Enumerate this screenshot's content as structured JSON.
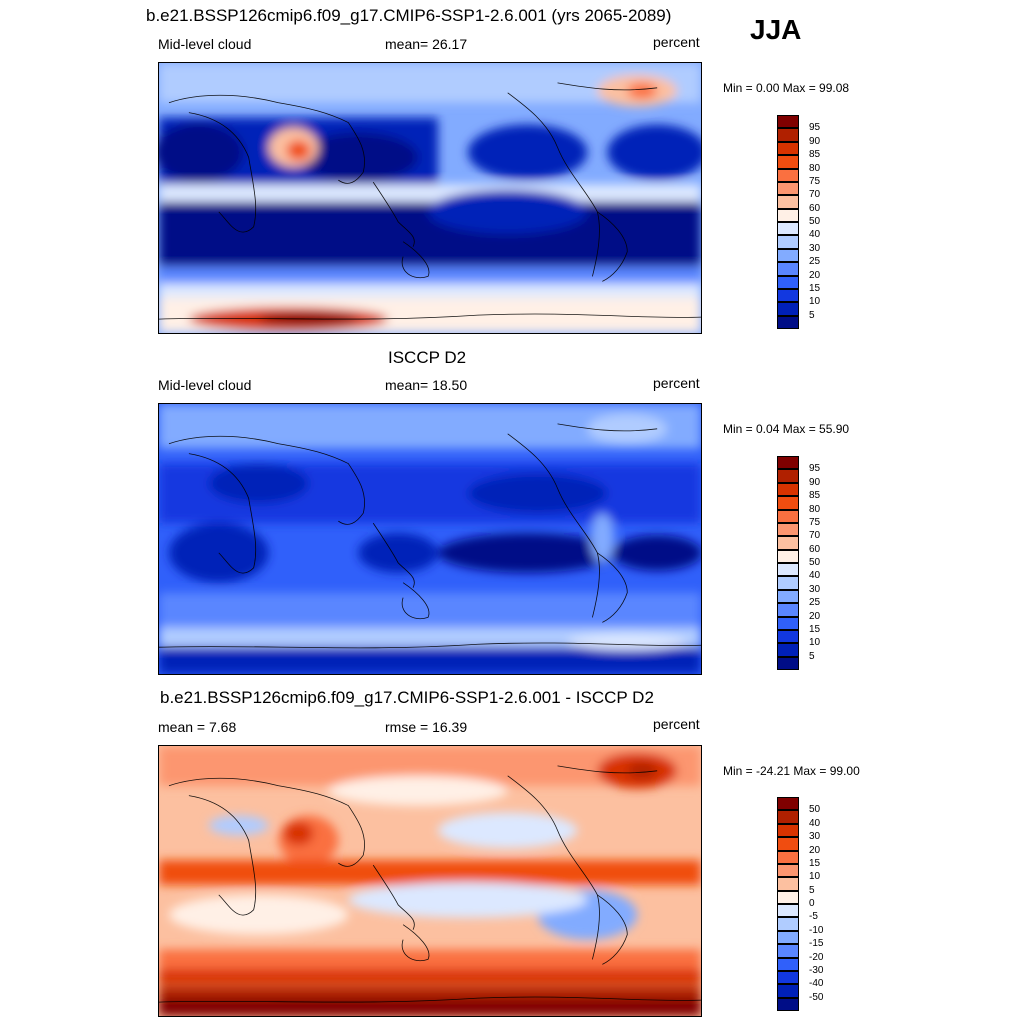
{
  "season": "JJA",
  "panels": [
    {
      "title": "b.e21.BSSP126cmip6.f09_g17.CMIP6-SSP1-2.6.001 (yrs 2065-2089)",
      "left_label": "Mid-level cloud",
      "center_label": "mean=  26.17",
      "right_label": "percent",
      "minmax": "Min =   0.00 Max =  99.08",
      "colorbar": {
        "colors": [
          "#7f0000",
          "#b02000",
          "#d83300",
          "#f04d10",
          "#fa7040",
          "#fc9670",
          "#fcc0a0",
          "#fff0e6",
          "#dce8ff",
          "#b0ccff",
          "#82abff",
          "#5a86ff",
          "#3060fa",
          "#1238e0",
          "#0020b8",
          "#000d87"
        ],
        "labels": [
          "95",
          "90",
          "85",
          "80",
          "75",
          "70",
          "60",
          "50",
          "40",
          "30",
          "25",
          "20",
          "15",
          "10",
          "5"
        ]
      }
    },
    {
      "title": "ISCCP D2",
      "left_label": "Mid-level cloud",
      "center_label": "mean=  18.50",
      "right_label": "percent",
      "minmax": "Min =   0.04 Max =  55.90",
      "colorbar": {
        "colors": [
          "#7f0000",
          "#b02000",
          "#d83300",
          "#f04d10",
          "#fa7040",
          "#fc9670",
          "#fcc0a0",
          "#fff0e6",
          "#dce8ff",
          "#b0ccff",
          "#82abff",
          "#5a86ff",
          "#3060fa",
          "#1238e0",
          "#0020b8",
          "#000d87"
        ],
        "labels": [
          "95",
          "90",
          "85",
          "80",
          "75",
          "70",
          "60",
          "50",
          "40",
          "30",
          "25",
          "20",
          "15",
          "10",
          "5"
        ]
      }
    },
    {
      "title": "b.e21.BSSP126cmip6.f09_g17.CMIP6-SSP1-2.6.001 - ISCCP D2",
      "left_label": "mean =   7.68",
      "center_label": "rmse =  16.39",
      "right_label": "percent",
      "minmax": "Min = -24.21 Max =  99.00",
      "colorbar": {
        "colors": [
          "#7f0000",
          "#b02000",
          "#d83300",
          "#f04d10",
          "#fa7040",
          "#fc9670",
          "#fcc0a0",
          "#fff0e6",
          "#dce8ff",
          "#b0ccff",
          "#82abff",
          "#5a86ff",
          "#3060fa",
          "#1238e0",
          "#0020b8",
          "#000d87"
        ],
        "labels": [
          "50",
          "40",
          "30",
          "20",
          "15",
          "10",
          "5",
          "0",
          "-5",
          "-10",
          "-15",
          "-20",
          "-30",
          "-40",
          "-50"
        ]
      }
    }
  ]
}
